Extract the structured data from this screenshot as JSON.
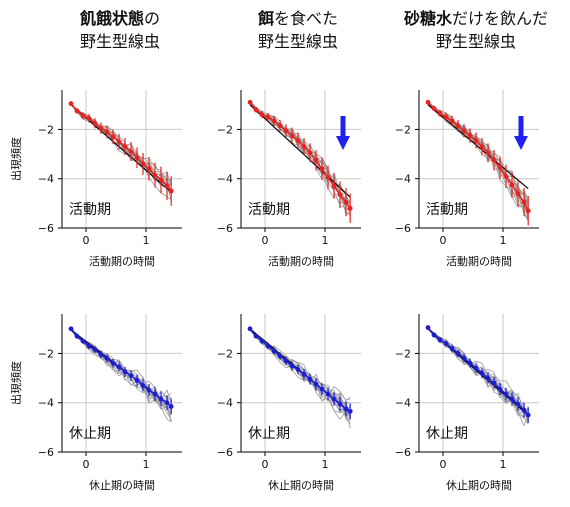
{
  "column_titles": [
    {
      "bold": "飢餓状態",
      "rest": "の",
      "line2": "野生型線虫"
    },
    {
      "bold": "餌",
      "rest": "を食べた",
      "line2": "野生型線虫"
    },
    {
      "bold": "砂糖水",
      "rest": "だけを飲んだ",
      "line2": "野生型線虫"
    }
  ],
  "chart_data": {
    "type": "line",
    "panels": [
      {
        "row": "active",
        "condition": "飢餓状態",
        "label": "活動期",
        "xlabel": "活動期の時間",
        "ylabel": "出現頻度",
        "color": "#e8231f",
        "arrow": false,
        "mean_x": [
          -0.25,
          -0.15,
          -0.05,
          0.05,
          0.15,
          0.25,
          0.35,
          0.45,
          0.55,
          0.65,
          0.75,
          0.85,
          0.95,
          1.05,
          1.15,
          1.25,
          1.35,
          1.42
        ],
        "mean_y": [
          -0.95,
          -1.25,
          -1.45,
          -1.55,
          -1.75,
          -1.95,
          -2.1,
          -2.3,
          -2.5,
          -2.7,
          -2.9,
          -3.15,
          -3.4,
          -3.6,
          -3.85,
          -4.05,
          -4.3,
          -4.5
        ],
        "fit_y": [
          -1.0,
          -4.55
        ]
      },
      {
        "row": "active",
        "condition": "餌",
        "label": "活動期",
        "xlabel": "活動期の時間",
        "ylabel": "",
        "color": "#e8231f",
        "arrow": true,
        "mean_x": [
          -0.25,
          -0.15,
          -0.05,
          0.05,
          0.15,
          0.25,
          0.35,
          0.45,
          0.55,
          0.65,
          0.75,
          0.85,
          0.95,
          1.05,
          1.15,
          1.25,
          1.35,
          1.42
        ],
        "mean_y": [
          -0.9,
          -1.2,
          -1.4,
          -1.5,
          -1.65,
          -1.85,
          -2.05,
          -2.25,
          -2.45,
          -2.7,
          -2.95,
          -3.25,
          -3.6,
          -3.95,
          -4.3,
          -4.65,
          -4.95,
          -5.2
        ],
        "fit_y": [
          -1.0,
          -4.75
        ]
      },
      {
        "row": "active",
        "condition": "砂糖水",
        "label": "活動期",
        "xlabel": "活動期の時間",
        "ylabel": "",
        "color": "#e8231f",
        "arrow": true,
        "mean_x": [
          -0.25,
          -0.15,
          -0.05,
          0.05,
          0.15,
          0.25,
          0.35,
          0.45,
          0.55,
          0.65,
          0.75,
          0.85,
          0.95,
          1.05,
          1.15,
          1.25,
          1.35,
          1.42
        ],
        "mean_y": [
          -0.9,
          -1.15,
          -1.35,
          -1.5,
          -1.65,
          -1.85,
          -2.05,
          -2.25,
          -2.45,
          -2.7,
          -2.95,
          -3.25,
          -3.55,
          -3.9,
          -4.25,
          -4.6,
          -4.95,
          -5.3
        ],
        "fit_y": [
          -1.0,
          -4.4
        ]
      },
      {
        "row": "rest",
        "condition": "飢餓状態",
        "label": "休止期",
        "xlabel": "休止期の時間",
        "ylabel": "出現頻度",
        "color": "#1d1dd6",
        "arrow": false,
        "mean_x": [
          -0.25,
          -0.15,
          -0.05,
          0.05,
          0.15,
          0.25,
          0.35,
          0.45,
          0.55,
          0.65,
          0.75,
          0.85,
          0.95,
          1.05,
          1.15,
          1.25,
          1.35,
          1.42
        ],
        "mean_y": [
          -1.0,
          -1.3,
          -1.5,
          -1.7,
          -1.85,
          -2.05,
          -2.2,
          -2.4,
          -2.55,
          -2.75,
          -2.9,
          -3.1,
          -3.3,
          -3.5,
          -3.65,
          -3.85,
          -4.0,
          -4.15
        ],
        "fit_y": [
          -1.05,
          -4.15
        ]
      },
      {
        "row": "rest",
        "condition": "餌",
        "label": "休止期",
        "xlabel": "休止期の時間",
        "ylabel": "",
        "color": "#1d1dd6",
        "arrow": false,
        "mean_x": [
          -0.25,
          -0.15,
          -0.05,
          0.05,
          0.15,
          0.25,
          0.35,
          0.45,
          0.55,
          0.65,
          0.75,
          0.85,
          0.95,
          1.05,
          1.15,
          1.25,
          1.35,
          1.42
        ],
        "mean_y": [
          -1.0,
          -1.3,
          -1.5,
          -1.7,
          -1.9,
          -2.1,
          -2.3,
          -2.5,
          -2.65,
          -2.85,
          -3.05,
          -3.25,
          -3.45,
          -3.65,
          -3.85,
          -4.05,
          -4.25,
          -4.35
        ],
        "fit_y": [
          -1.0,
          -4.4
        ]
      },
      {
        "row": "rest",
        "condition": "砂糖水",
        "label": "休止期",
        "xlabel": "休止期の時間",
        "ylabel": "",
        "color": "#1d1dd6",
        "arrow": false,
        "mean_x": [
          -0.25,
          -0.15,
          -0.05,
          0.05,
          0.15,
          0.25,
          0.35,
          0.45,
          0.55,
          0.65,
          0.75,
          0.85,
          0.95,
          1.05,
          1.15,
          1.25,
          1.35,
          1.42
        ],
        "mean_y": [
          -0.95,
          -1.25,
          -1.45,
          -1.6,
          -1.8,
          -2.0,
          -2.2,
          -2.4,
          -2.6,
          -2.8,
          -3.0,
          -3.2,
          -3.45,
          -3.65,
          -3.85,
          -4.05,
          -4.3,
          -4.5
        ],
        "fit_y": [
          -1.0,
          -4.5
        ]
      }
    ],
    "x_ticks": [
      0,
      1
    ],
    "y_ticks": [
      -2,
      -4,
      -6
    ],
    "xlim": [
      -0.4,
      1.6
    ],
    "ylim": [
      -6,
      -0.4
    ],
    "grid": true,
    "individual_trace_color": "#9a9a9a",
    "fit_line_color": "#000000",
    "arrow_color": "#2020f0"
  }
}
